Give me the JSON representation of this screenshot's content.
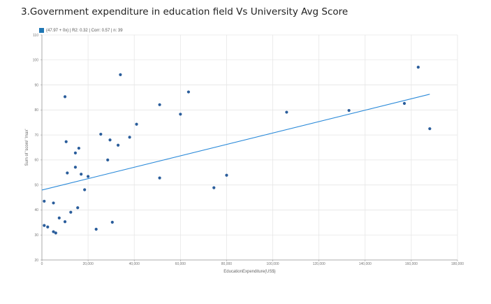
{
  "chart_data": {
    "type": "scatter",
    "title": "3.Government expenditure in education field Vs University Avg Score",
    "legend_text": "(47.97 + 0x) | R2: 0.32 | Corr: 0.57 | n: 39",
    "xlabel": "EducationExpenditure(US$)",
    "ylabel": "Sum of 'score' 'max'",
    "xlim": [
      0,
      180000
    ],
    "ylim": [
      20,
      110
    ],
    "x_ticks": [
      0,
      20000,
      40000,
      60000,
      80000,
      100000,
      120000,
      140000,
      160000,
      180000
    ],
    "x_tick_labels": [
      "0",
      "20,000",
      "40,000",
      "60,000",
      "80,000",
      "100,000",
      "120,000",
      "140,000",
      "160,000",
      "180,000"
    ],
    "y_ticks": [
      20,
      30,
      40,
      50,
      60,
      70,
      80,
      90,
      100,
      110
    ],
    "y_tick_labels": [
      "20",
      "30",
      "40",
      "50",
      "60",
      "70",
      "80",
      "90",
      "100",
      "110"
    ],
    "grid": true,
    "series": [
      {
        "points": [
          [
            1000,
            43.5
          ],
          [
            1000,
            33.8
          ],
          [
            2500,
            33.2
          ],
          [
            5000,
            42.8
          ],
          [
            5000,
            31.3
          ],
          [
            6000,
            30.8
          ],
          [
            7500,
            36.8
          ],
          [
            10000,
            35.3
          ],
          [
            10000,
            85.3
          ],
          [
            10500,
            67.3
          ],
          [
            11000,
            54.8
          ],
          [
            12500,
            39.1
          ],
          [
            14500,
            57.1
          ],
          [
            14500,
            62.8
          ],
          [
            15500,
            40.9
          ],
          [
            16000,
            64.7
          ],
          [
            17000,
            54.3
          ],
          [
            18500,
            48.1
          ],
          [
            20000,
            53.4
          ],
          [
            23500,
            32.3
          ],
          [
            25500,
            70.3
          ],
          [
            28500,
            60.0
          ],
          [
            29500,
            68.0
          ],
          [
            30500,
            35.1
          ],
          [
            33000,
            65.9
          ],
          [
            34000,
            94.1
          ],
          [
            38000,
            69.1
          ],
          [
            41000,
            74.3
          ],
          [
            51000,
            82.1
          ],
          [
            51000,
            52.8
          ],
          [
            60000,
            78.3
          ],
          [
            63500,
            87.2
          ],
          [
            74500,
            48.9
          ],
          [
            80000,
            53.9
          ],
          [
            106000,
            79.1
          ],
          [
            133000,
            79.8
          ],
          [
            157000,
            82.6
          ],
          [
            163000,
            97.1
          ],
          [
            168000,
            72.5
          ]
        ],
        "color": "#2a5d9b"
      }
    ],
    "trend_line": {
      "x": [
        0,
        168000
      ],
      "y": [
        47.97,
        86.3
      ],
      "color": "#2b8ad9"
    }
  }
}
